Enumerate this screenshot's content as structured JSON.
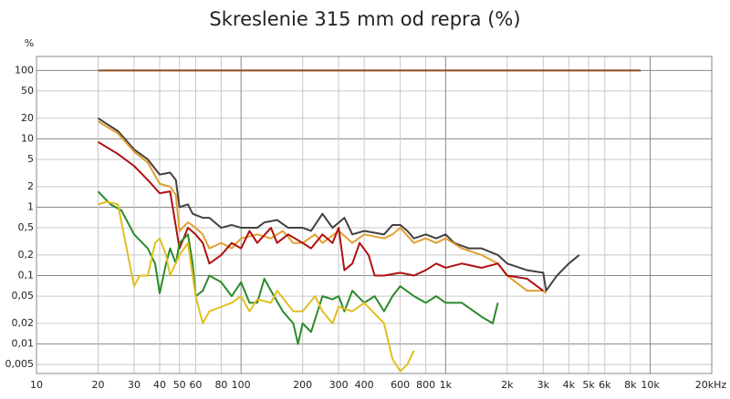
{
  "chart_data": {
    "type": "line",
    "title": "Skreslenie 315 mm od repra (%)",
    "y_label": "%",
    "log_x": true,
    "log_y": true,
    "grid": true,
    "xlim": [
      10,
      20000
    ],
    "ylim": [
      0.0037,
      160
    ],
    "xticks": [
      10,
      20,
      30,
      40,
      50,
      60,
      80,
      100,
      200,
      300,
      400,
      600,
      800,
      {
        "value": 1000,
        "label": "1k"
      },
      {
        "value": 2000,
        "label": "2k"
      },
      {
        "value": 3000,
        "label": "3k"
      },
      {
        "value": 4000,
        "label": "4k"
      },
      {
        "value": 5000,
        "label": "5k"
      },
      {
        "value": 6000,
        "label": "6k"
      },
      {
        "value": 8000,
        "label": "8k"
      },
      {
        "value": 10000,
        "label": "10k"
      },
      {
        "value": 20000,
        "label": "20kHz"
      }
    ],
    "yticks": [
      100,
      50,
      20,
      10,
      5,
      2,
      1,
      {
        "value": 0.5,
        "label": "0,5"
      },
      {
        "value": 0.2,
        "label": "0,2"
      },
      {
        "value": 0.1,
        "label": "0,1"
      },
      {
        "value": 0.05,
        "label": "0,05"
      },
      {
        "value": 0.02,
        "label": "0,02"
      },
      {
        "value": 0.01,
        "label": "0,01"
      },
      {
        "value": 0.005,
        "label": "0,005"
      }
    ],
    "series": [
      {
        "color": "#8b4a1a",
        "x": [
          20,
          9000
        ],
        "values": [
          100,
          100
        ]
      },
      {
        "color": "#454040",
        "x": [
          20,
          25,
          30,
          35,
          40,
          45,
          48,
          50,
          55,
          58,
          65,
          70,
          80,
          90,
          100,
          120,
          130,
          150,
          170,
          200,
          220,
          250,
          280,
          320,
          350,
          400,
          500,
          550,
          600,
          650,
          700,
          800,
          900,
          1000,
          1100,
          1300,
          1500,
          1800,
          2000,
          2500,
          3000,
          3100,
          3500,
          4000,
          4500
        ],
        "values": [
          20,
          13,
          7,
          5,
          3,
          3.2,
          2.5,
          1,
          1.1,
          0.8,
          0.7,
          0.7,
          0.5,
          0.55,
          0.5,
          0.5,
          0.6,
          0.65,
          0.5,
          0.5,
          0.45,
          0.8,
          0.5,
          0.7,
          0.4,
          0.45,
          0.4,
          0.55,
          0.55,
          0.45,
          0.35,
          0.4,
          0.35,
          0.4,
          0.3,
          0.25,
          0.25,
          0.2,
          0.15,
          0.12,
          0.11,
          0.06,
          0.1,
          0.15,
          0.2
        ]
      },
      {
        "color": "#e0a030",
        "x": [
          20,
          25,
          30,
          35,
          40,
          45,
          48,
          50,
          55,
          60,
          65,
          70,
          80,
          90,
          100,
          120,
          140,
          160,
          180,
          200,
          230,
          250,
          300,
          350,
          400,
          500,
          550,
          600,
          700,
          800,
          900,
          1000,
          1200,
          1500,
          1800,
          2000,
          2500,
          3000,
          3100
        ],
        "values": [
          18,
          12,
          6.5,
          4.5,
          2.2,
          2,
          1.5,
          0.45,
          0.6,
          0.5,
          0.4,
          0.25,
          0.3,
          0.25,
          0.35,
          0.4,
          0.35,
          0.45,
          0.3,
          0.3,
          0.4,
          0.3,
          0.45,
          0.3,
          0.4,
          0.35,
          0.4,
          0.5,
          0.3,
          0.35,
          0.3,
          0.35,
          0.25,
          0.2,
          0.15,
          0.1,
          0.06,
          0.06,
          0.055
        ]
      },
      {
        "color": "#b01010",
        "x": [
          20,
          25,
          30,
          35,
          40,
          45,
          50,
          55,
          60,
          65,
          70,
          80,
          90,
          100,
          110,
          120,
          140,
          150,
          170,
          200,
          220,
          250,
          280,
          300,
          320,
          350,
          380,
          420,
          450,
          500,
          600,
          700,
          800,
          900,
          1000,
          1200,
          1500,
          1800,
          2000,
          2500,
          3000
        ],
        "values": [
          9,
          6,
          4,
          2.5,
          1.6,
          1.7,
          0.25,
          0.5,
          0.4,
          0.3,
          0.15,
          0.2,
          0.3,
          0.25,
          0.45,
          0.3,
          0.5,
          0.3,
          0.4,
          0.3,
          0.25,
          0.4,
          0.3,
          0.5,
          0.12,
          0.15,
          0.3,
          0.2,
          0.1,
          0.1,
          0.11,
          0.1,
          0.12,
          0.15,
          0.13,
          0.15,
          0.13,
          0.15,
          0.1,
          0.09,
          0.06
        ]
      },
      {
        "color": "#2a8a2a",
        "x": [
          20,
          23,
          26,
          30,
          35,
          38,
          40,
          43,
          45,
          48,
          50,
          55,
          58,
          60,
          65,
          70,
          80,
          90,
          100,
          110,
          120,
          130,
          140,
          160,
          180,
          190,
          200,
          220,
          250,
          280,
          300,
          320,
          350,
          400,
          450,
          500,
          550,
          600,
          700,
          800,
          900,
          1000,
          1200,
          1500,
          1700,
          1800
        ],
        "values": [
          1.7,
          1.1,
          0.9,
          0.4,
          0.25,
          0.15,
          0.055,
          0.15,
          0.25,
          0.15,
          0.3,
          0.4,
          0.15,
          0.05,
          0.06,
          0.1,
          0.08,
          0.05,
          0.08,
          0.04,
          0.04,
          0.09,
          0.06,
          0.03,
          0.02,
          0.01,
          0.02,
          0.015,
          0.05,
          0.045,
          0.05,
          0.03,
          0.06,
          0.04,
          0.05,
          0.03,
          0.05,
          0.07,
          0.05,
          0.04,
          0.05,
          0.04,
          0.04,
          0.025,
          0.02,
          0.04
        ]
      },
      {
        "color": "#e0c020",
        "x": [
          20,
          22,
          25,
          28,
          30,
          32,
          35,
          38,
          40,
          43,
          45,
          50,
          55,
          60,
          65,
          70,
          80,
          90,
          100,
          110,
          120,
          140,
          150,
          180,
          200,
          230,
          250,
          280,
          300,
          350,
          400,
          500,
          550,
          600,
          650,
          700
        ],
        "values": [
          1.1,
          1.2,
          1.1,
          0.2,
          0.07,
          0.1,
          0.1,
          0.3,
          0.35,
          0.2,
          0.1,
          0.2,
          0.3,
          0.05,
          0.02,
          0.03,
          0.035,
          0.04,
          0.05,
          0.03,
          0.045,
          0.04,
          0.06,
          0.03,
          0.03,
          0.05,
          0.03,
          0.02,
          0.035,
          0.03,
          0.04,
          0.02,
          0.006,
          0.004,
          0.005,
          0.008
        ]
      }
    ]
  }
}
